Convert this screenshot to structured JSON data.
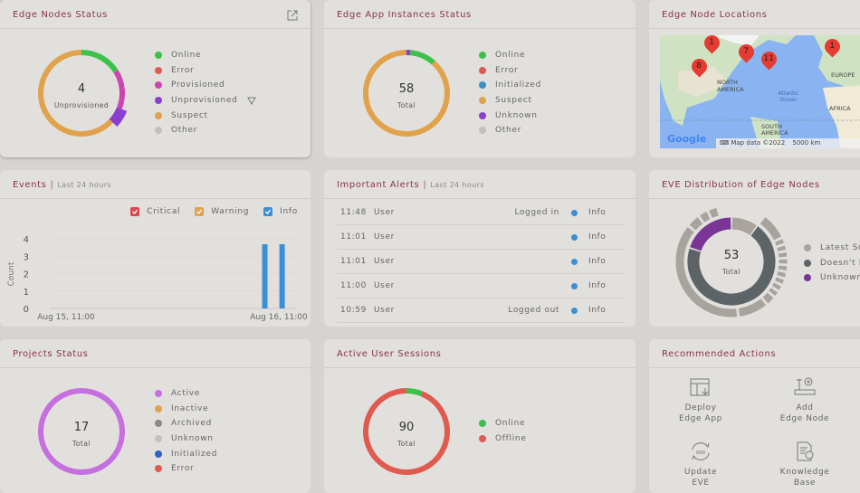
{
  "edge_nodes_status": {
    "title": "Edge Nodes Status",
    "center_value": "4",
    "center_label": "Unprovisioned",
    "legend": [
      {
        "label": "Online",
        "color": "#3cc14a"
      },
      {
        "label": "Error",
        "color": "#e05a4f"
      },
      {
        "label": "Provisioned",
        "color": "#cf45b0"
      },
      {
        "label": "Unprovisioned",
        "color": "#8a3fd0"
      },
      {
        "label": "Suspect",
        "color": "#e0a24a"
      },
      {
        "label": "Other",
        "color": "#c2c0bd"
      }
    ],
    "segments": [
      {
        "name": "Online",
        "fraction": 0.16,
        "color": "#3cc14a"
      },
      {
        "name": "Provisioned",
        "fraction": 0.15,
        "color": "#cf45b0"
      },
      {
        "name": "Unprovisioned",
        "fraction": 0.06,
        "color": "#8a3fd0",
        "highlight": true
      },
      {
        "name": "Suspect",
        "fraction": 0.63,
        "color": "#e0a24a"
      }
    ]
  },
  "edge_app_status": {
    "title": "Edge App Instances Status",
    "center_value": "58",
    "center_label": "Total",
    "legend": [
      {
        "label": "Online",
        "color": "#3cc14a"
      },
      {
        "label": "Error",
        "color": "#e05a4f"
      },
      {
        "label": "Initialized",
        "color": "#3a8fc9"
      },
      {
        "label": "Suspect",
        "color": "#e0a24a"
      },
      {
        "label": "Unknown",
        "color": "#8a3fd0"
      },
      {
        "label": "Other",
        "color": "#c2c0bd"
      }
    ],
    "segments": [
      {
        "name": "Unknown",
        "fraction": 0.015,
        "color": "#8a3fd0"
      },
      {
        "name": "Online",
        "fraction": 0.1,
        "color": "#3cc14a"
      },
      {
        "name": "Suspect",
        "fraction": 0.885,
        "color": "#e0a24a"
      }
    ]
  },
  "edge_node_locations": {
    "title": "Edge Node Locations",
    "markers": [
      "1",
      "8",
      "7",
      "11",
      "1"
    ],
    "labels": {
      "north_america": "NORTH AMERICA",
      "europe": "EUROPE",
      "africa": "AFRICA",
      "south_america": "SOUTH AMERICA",
      "atlantic": "Atlantic Ocean"
    },
    "logo": "Google",
    "attribution": "Map data ©2022",
    "scale": "5000 km"
  },
  "events": {
    "title": "Events",
    "subtitle": "Last 24 hours",
    "legend": [
      {
        "label": "Critical",
        "color": "#d9474f"
      },
      {
        "label": "Warning",
        "color": "#e0a24a"
      },
      {
        "label": "Info",
        "color": "#3a8fd6"
      }
    ]
  },
  "chart_data": {
    "type": "bar",
    "title": "Events",
    "ylabel": "Count",
    "xlabel": "",
    "ylim": [
      0,
      4
    ],
    "yticks": [
      "0",
      "1",
      "2",
      "3",
      "4"
    ],
    "xtick_labels": [
      "Aug 15, 11:00",
      "Aug 16, 11:00"
    ],
    "series": [
      {
        "name": "Info",
        "color": "#3a8fd6",
        "bars": [
          {
            "position": 0.87,
            "value": 4
          },
          {
            "position": 0.94,
            "value": 4
          }
        ]
      }
    ]
  },
  "important_alerts": {
    "title": "Important Alerts",
    "subtitle": "Last 24 hours",
    "rows": [
      {
        "time": "11:48",
        "source": "User",
        "message": "Logged in",
        "level": "Info"
      },
      {
        "time": "11:01",
        "source": "User",
        "message": "",
        "level": "Info"
      },
      {
        "time": "11:01",
        "source": "User",
        "message": "",
        "level": "Info"
      },
      {
        "time": "11:00",
        "source": "User",
        "message": "",
        "level": "Info"
      },
      {
        "time": "10:59",
        "source": "User",
        "message": "Logged out",
        "level": "Info"
      }
    ]
  },
  "eve_distribution": {
    "title": "EVE Distribution of Edge Nodes",
    "center_value": "53",
    "center_label": "Total",
    "legend": [
      {
        "label": "Latest Soft",
        "color": "#a8a39d"
      },
      {
        "label": "Doesn't ha",
        "color": "#5d6468"
      },
      {
        "label": "Unknown",
        "color": "#7a3596"
      }
    ],
    "inner_segments": [
      {
        "name": "Latest Software",
        "fraction": 0.1,
        "color": "#a8a39d"
      },
      {
        "name": "Doesn't have latest",
        "fraction": 0.7,
        "color": "#5d6468"
      },
      {
        "name": "Unknown",
        "fraction": 0.2,
        "color": "#7a3596"
      }
    ]
  },
  "projects_status": {
    "title": "Projects Status",
    "center_value": "17",
    "center_label": "Total",
    "legend": [
      {
        "label": "Active",
        "color": "#c56fe0"
      },
      {
        "label": "Inactive",
        "color": "#e0a24a"
      },
      {
        "label": "Archived",
        "color": "#8c8a88"
      },
      {
        "label": "Unknown",
        "color": "#c2c0bd"
      },
      {
        "label": "Initialized",
        "color": "#2f5fc9"
      },
      {
        "label": "Error",
        "color": "#e05a4f"
      }
    ],
    "segments": [
      {
        "name": "Active",
        "fraction": 1,
        "color": "#c56fe0"
      }
    ]
  },
  "active_user_sessions": {
    "title": "Active User Sessions",
    "center_value": "90",
    "center_label": "Total",
    "legend": [
      {
        "label": "Online",
        "color": "#3cc14a"
      },
      {
        "label": "Offline",
        "color": "#e05a4f"
      }
    ],
    "segments": [
      {
        "name": "Online",
        "fraction": 0.06,
        "color": "#3cc14a"
      },
      {
        "name": "Offline",
        "fraction": 0.94,
        "color": "#e05a4f"
      }
    ]
  },
  "recommended_actions": {
    "title": "Recommended Actions",
    "actions": [
      {
        "line1": "Deploy",
        "line2": "Edge App"
      },
      {
        "line1": "Add",
        "line2": "Edge Node"
      },
      {
        "line1": "Update",
        "line2": "EVE"
      },
      {
        "line1": "Knowledge",
        "line2": "Base"
      }
    ]
  }
}
